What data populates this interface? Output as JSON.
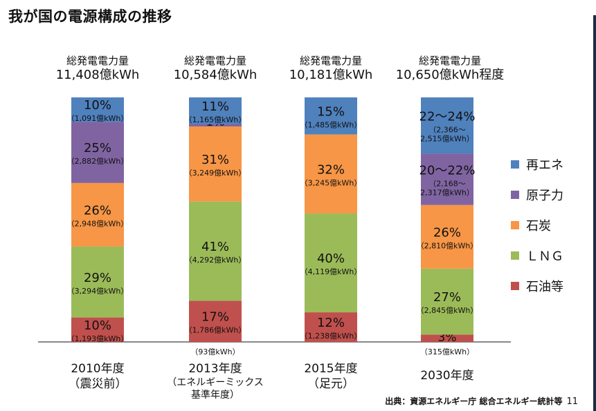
{
  "title": "我が国の電源構成の推移",
  "source": "出典：資源エネルギー庁 総合エネルギー統計等",
  "page_number": "11",
  "chart_data": {
    "type": "bar",
    "stacked": true,
    "percent_stacked": true,
    "total_label": "総発電電力量",
    "categories": [
      {
        "lines": [
          "2010年度",
          "（震災前）"
        ],
        "total": "11,408億kWh"
      },
      {
        "lines": [
          "2013年度",
          "（エネルギーミックス",
          "基準年度）"
        ],
        "total": "10,584億kWh"
      },
      {
        "lines": [
          "2015年度",
          "（足元）"
        ],
        "total": "10,181億kWh"
      },
      {
        "lines": [
          "2030年度"
        ],
        "total": "10,650億kWh程度"
      }
    ],
    "series": [
      {
        "name": "石油等",
        "color": "#c0504d",
        "values": [
          10,
          17,
          12,
          3
        ],
        "pct_labels": [
          "10%",
          "17%",
          "12%",
          "3%"
        ],
        "kwh_labels": [
          "（1,193億kWh）",
          "（1,786億kWh）",
          "（1,238億kWh）",
          "（315億kWh）"
        ]
      },
      {
        "name": "ＬＮＧ",
        "color": "#9bbb59",
        "values": [
          29,
          41,
          40,
          27
        ],
        "pct_labels": [
          "29%",
          "41%",
          "40%",
          "27%"
        ],
        "kwh_labels": [
          "（3,294億kWh）",
          "（4,292億kWh）",
          "（4,119億kWh）",
          "（2,845億kWh）"
        ]
      },
      {
        "name": "石炭",
        "color": "#f79646",
        "values": [
          26,
          31,
          32,
          26
        ],
        "pct_labels": [
          "26%",
          "31%",
          "32%",
          "26%"
        ],
        "kwh_labels": [
          "（2,948億kWh）",
          "（3,249億kWh）",
          "（3,245億kWh）",
          "（2,810億kWh）"
        ]
      },
      {
        "name": "原子力",
        "color": "#8064a2",
        "values": [
          25,
          1,
          0,
          21
        ],
        "pct_labels": [
          "25%",
          "1%",
          "",
          "20～22%"
        ],
        "kwh_labels": [
          "（2,882億kWh）",
          "（93億kWh）",
          "",
          "（2,168～|2,317億kWh）"
        ]
      },
      {
        "name": "再エネ",
        "color": "#4f81bd",
        "values": [
          10,
          11,
          15,
          23
        ],
        "pct_labels": [
          "10%",
          "11%",
          "15%",
          "22～24%"
        ],
        "kwh_labels": [
          "（1,091億kWh）",
          "（1,165億kWh）",
          "（1,485億kWh）",
          "（2,366～|2,515億kWh）"
        ]
      }
    ],
    "legend_order": [
      "再エネ",
      "原子力",
      "石炭",
      "ＬＮＧ",
      "石油等"
    ],
    "legend_position": "right"
  }
}
